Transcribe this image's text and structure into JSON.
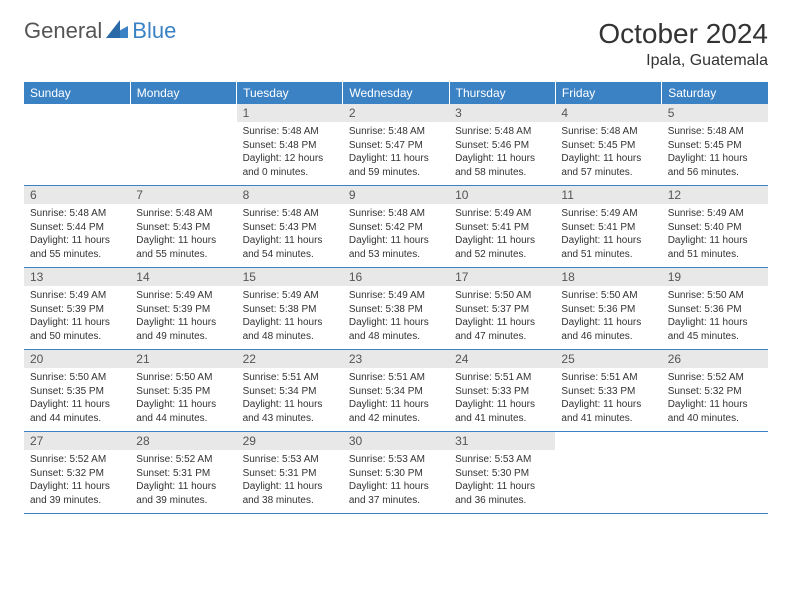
{
  "brand": {
    "part1": "General",
    "part2": "Blue"
  },
  "title": "October 2024",
  "location": "Ipala, Guatemala",
  "colors": {
    "header_bg": "#3b82c4",
    "header_text": "#ffffff",
    "daynum_bg": "#e8e8e8",
    "border": "#3b82c4",
    "text": "#333333",
    "background": "#ffffff"
  },
  "font": {
    "family": "Arial",
    "title_size": 28,
    "header_size": 12,
    "body_size": 10
  },
  "weekdays": [
    "Sunday",
    "Monday",
    "Tuesday",
    "Wednesday",
    "Thursday",
    "Friday",
    "Saturday"
  ],
  "weeks": [
    [
      {
        "empty": true
      },
      {
        "empty": true
      },
      {
        "num": "1",
        "sunrise": "Sunrise: 5:48 AM",
        "sunset": "Sunset: 5:48 PM",
        "daylight1": "Daylight: 12 hours",
        "daylight2": "and 0 minutes."
      },
      {
        "num": "2",
        "sunrise": "Sunrise: 5:48 AM",
        "sunset": "Sunset: 5:47 PM",
        "daylight1": "Daylight: 11 hours",
        "daylight2": "and 59 minutes."
      },
      {
        "num": "3",
        "sunrise": "Sunrise: 5:48 AM",
        "sunset": "Sunset: 5:46 PM",
        "daylight1": "Daylight: 11 hours",
        "daylight2": "and 58 minutes."
      },
      {
        "num": "4",
        "sunrise": "Sunrise: 5:48 AM",
        "sunset": "Sunset: 5:45 PM",
        "daylight1": "Daylight: 11 hours",
        "daylight2": "and 57 minutes."
      },
      {
        "num": "5",
        "sunrise": "Sunrise: 5:48 AM",
        "sunset": "Sunset: 5:45 PM",
        "daylight1": "Daylight: 11 hours",
        "daylight2": "and 56 minutes."
      }
    ],
    [
      {
        "num": "6",
        "sunrise": "Sunrise: 5:48 AM",
        "sunset": "Sunset: 5:44 PM",
        "daylight1": "Daylight: 11 hours",
        "daylight2": "and 55 minutes."
      },
      {
        "num": "7",
        "sunrise": "Sunrise: 5:48 AM",
        "sunset": "Sunset: 5:43 PM",
        "daylight1": "Daylight: 11 hours",
        "daylight2": "and 55 minutes."
      },
      {
        "num": "8",
        "sunrise": "Sunrise: 5:48 AM",
        "sunset": "Sunset: 5:43 PM",
        "daylight1": "Daylight: 11 hours",
        "daylight2": "and 54 minutes."
      },
      {
        "num": "9",
        "sunrise": "Sunrise: 5:48 AM",
        "sunset": "Sunset: 5:42 PM",
        "daylight1": "Daylight: 11 hours",
        "daylight2": "and 53 minutes."
      },
      {
        "num": "10",
        "sunrise": "Sunrise: 5:49 AM",
        "sunset": "Sunset: 5:41 PM",
        "daylight1": "Daylight: 11 hours",
        "daylight2": "and 52 minutes."
      },
      {
        "num": "11",
        "sunrise": "Sunrise: 5:49 AM",
        "sunset": "Sunset: 5:41 PM",
        "daylight1": "Daylight: 11 hours",
        "daylight2": "and 51 minutes."
      },
      {
        "num": "12",
        "sunrise": "Sunrise: 5:49 AM",
        "sunset": "Sunset: 5:40 PM",
        "daylight1": "Daylight: 11 hours",
        "daylight2": "and 51 minutes."
      }
    ],
    [
      {
        "num": "13",
        "sunrise": "Sunrise: 5:49 AM",
        "sunset": "Sunset: 5:39 PM",
        "daylight1": "Daylight: 11 hours",
        "daylight2": "and 50 minutes."
      },
      {
        "num": "14",
        "sunrise": "Sunrise: 5:49 AM",
        "sunset": "Sunset: 5:39 PM",
        "daylight1": "Daylight: 11 hours",
        "daylight2": "and 49 minutes."
      },
      {
        "num": "15",
        "sunrise": "Sunrise: 5:49 AM",
        "sunset": "Sunset: 5:38 PM",
        "daylight1": "Daylight: 11 hours",
        "daylight2": "and 48 minutes."
      },
      {
        "num": "16",
        "sunrise": "Sunrise: 5:49 AM",
        "sunset": "Sunset: 5:38 PM",
        "daylight1": "Daylight: 11 hours",
        "daylight2": "and 48 minutes."
      },
      {
        "num": "17",
        "sunrise": "Sunrise: 5:50 AM",
        "sunset": "Sunset: 5:37 PM",
        "daylight1": "Daylight: 11 hours",
        "daylight2": "and 47 minutes."
      },
      {
        "num": "18",
        "sunrise": "Sunrise: 5:50 AM",
        "sunset": "Sunset: 5:36 PM",
        "daylight1": "Daylight: 11 hours",
        "daylight2": "and 46 minutes."
      },
      {
        "num": "19",
        "sunrise": "Sunrise: 5:50 AM",
        "sunset": "Sunset: 5:36 PM",
        "daylight1": "Daylight: 11 hours",
        "daylight2": "and 45 minutes."
      }
    ],
    [
      {
        "num": "20",
        "sunrise": "Sunrise: 5:50 AM",
        "sunset": "Sunset: 5:35 PM",
        "daylight1": "Daylight: 11 hours",
        "daylight2": "and 44 minutes."
      },
      {
        "num": "21",
        "sunrise": "Sunrise: 5:50 AM",
        "sunset": "Sunset: 5:35 PM",
        "daylight1": "Daylight: 11 hours",
        "daylight2": "and 44 minutes."
      },
      {
        "num": "22",
        "sunrise": "Sunrise: 5:51 AM",
        "sunset": "Sunset: 5:34 PM",
        "daylight1": "Daylight: 11 hours",
        "daylight2": "and 43 minutes."
      },
      {
        "num": "23",
        "sunrise": "Sunrise: 5:51 AM",
        "sunset": "Sunset: 5:34 PM",
        "daylight1": "Daylight: 11 hours",
        "daylight2": "and 42 minutes."
      },
      {
        "num": "24",
        "sunrise": "Sunrise: 5:51 AM",
        "sunset": "Sunset: 5:33 PM",
        "daylight1": "Daylight: 11 hours",
        "daylight2": "and 41 minutes."
      },
      {
        "num": "25",
        "sunrise": "Sunrise: 5:51 AM",
        "sunset": "Sunset: 5:33 PM",
        "daylight1": "Daylight: 11 hours",
        "daylight2": "and 41 minutes."
      },
      {
        "num": "26",
        "sunrise": "Sunrise: 5:52 AM",
        "sunset": "Sunset: 5:32 PM",
        "daylight1": "Daylight: 11 hours",
        "daylight2": "and 40 minutes."
      }
    ],
    [
      {
        "num": "27",
        "sunrise": "Sunrise: 5:52 AM",
        "sunset": "Sunset: 5:32 PM",
        "daylight1": "Daylight: 11 hours",
        "daylight2": "and 39 minutes."
      },
      {
        "num": "28",
        "sunrise": "Sunrise: 5:52 AM",
        "sunset": "Sunset: 5:31 PM",
        "daylight1": "Daylight: 11 hours",
        "daylight2": "and 39 minutes."
      },
      {
        "num": "29",
        "sunrise": "Sunrise: 5:53 AM",
        "sunset": "Sunset: 5:31 PM",
        "daylight1": "Daylight: 11 hours",
        "daylight2": "and 38 minutes."
      },
      {
        "num": "30",
        "sunrise": "Sunrise: 5:53 AM",
        "sunset": "Sunset: 5:30 PM",
        "daylight1": "Daylight: 11 hours",
        "daylight2": "and 37 minutes."
      },
      {
        "num": "31",
        "sunrise": "Sunrise: 5:53 AM",
        "sunset": "Sunset: 5:30 PM",
        "daylight1": "Daylight: 11 hours",
        "daylight2": "and 36 minutes."
      },
      {
        "empty": true
      },
      {
        "empty": true
      }
    ]
  ]
}
